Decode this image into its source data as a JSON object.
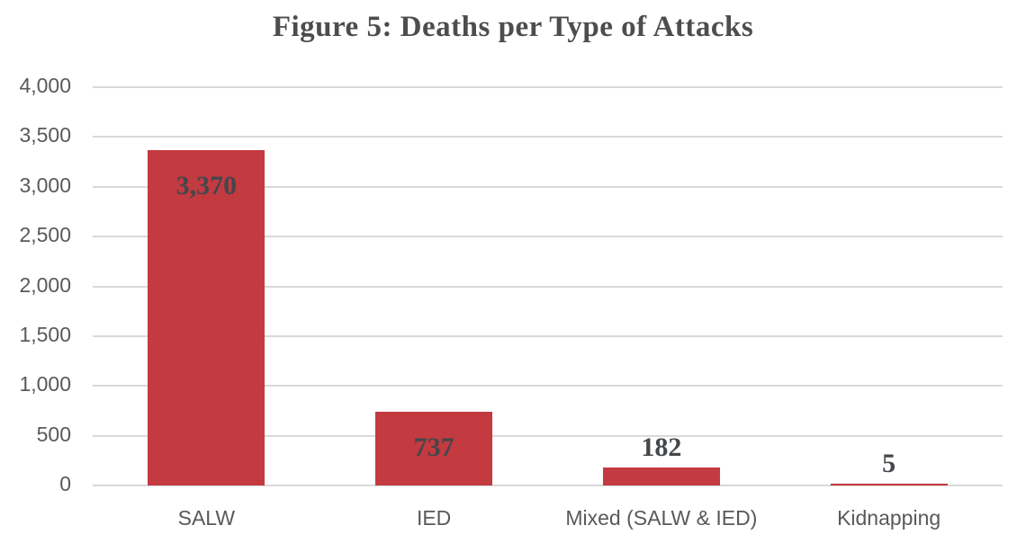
{
  "chart_data": {
    "type": "bar",
    "title": "Figure 5: Deaths per Type of Attacks",
    "categories": [
      "SALW",
      "IED",
      "Mixed (SALW & IED)",
      "Kidnapping"
    ],
    "values": [
      3370,
      737,
      182,
      5
    ],
    "value_labels": [
      "3,370",
      "737",
      "182",
      "5"
    ],
    "xlabel": "",
    "ylabel": "",
    "ylim": [
      0,
      4000
    ],
    "ytick_step": 500,
    "ytick_labels": [
      "0",
      "500",
      "1,000",
      "1,500",
      "2,000",
      "2,500",
      "3,000",
      "3,500",
      "4,000"
    ],
    "grid": true,
    "legend": "none",
    "colors": {
      "bar": "#c33a40",
      "gridline": "#d9d9d9",
      "axis_text": "#595959",
      "title_text": "#4d4d4d",
      "value_label_text": "#44474b"
    }
  }
}
